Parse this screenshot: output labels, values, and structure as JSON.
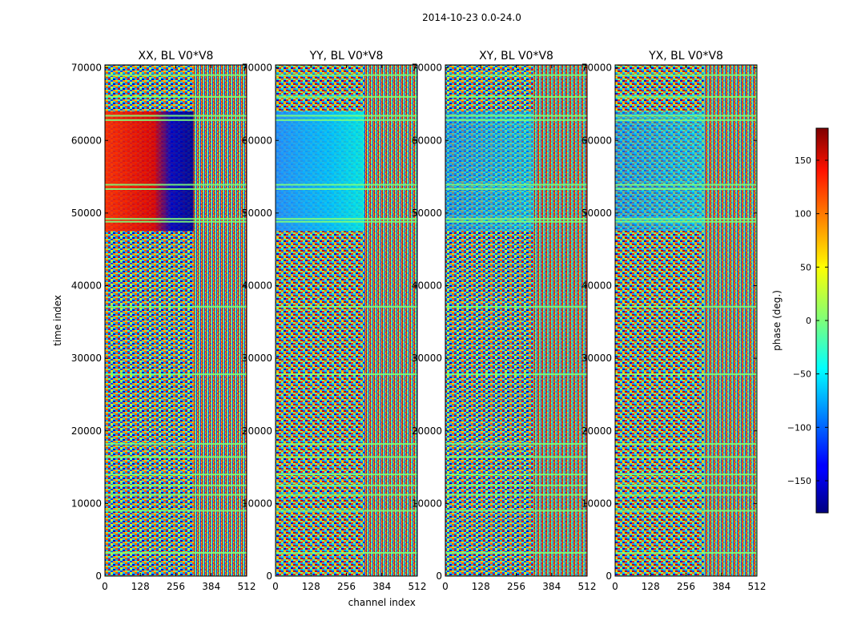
{
  "figure": {
    "suptitle": "2014-10-23 0.0-24.0"
  },
  "colormap": "jet",
  "chart_data": [
    {
      "type": "heatmap",
      "title": "XX, BL V0*V8",
      "xlabel": "",
      "ylabel": "time index",
      "x_range": [
        0,
        512
      ],
      "y_range": [
        0,
        70400
      ],
      "x_ticks": [
        "0",
        "128",
        "256",
        "384",
        "512"
      ],
      "y_ticks": [
        "0",
        "10000",
        "20000",
        "30000",
        "40000",
        "50000",
        "60000",
        "70000"
      ],
      "value_range": [
        -180,
        180
      ],
      "color_scale": "jet"
    },
    {
      "type": "heatmap",
      "title": "YY, BL V0*V8",
      "xlabel": "channel index",
      "ylabel": "",
      "x_range": [
        0,
        512
      ],
      "y_range": [
        0,
        70400
      ],
      "x_ticks": [
        "0",
        "128",
        "256",
        "384",
        "512"
      ],
      "y_ticks": [
        "0",
        "10000",
        "20000",
        "30000",
        "40000",
        "50000",
        "60000",
        "70000"
      ],
      "value_range": [
        -180,
        180
      ],
      "color_scale": "jet"
    },
    {
      "type": "heatmap",
      "title": "XY, BL V0*V8",
      "xlabel": "",
      "ylabel": "",
      "x_range": [
        0,
        512
      ],
      "y_range": [
        0,
        70400
      ],
      "x_ticks": [
        "0",
        "128",
        "256",
        "384",
        "512"
      ],
      "y_ticks": [
        "0",
        "10000",
        "20000",
        "30000",
        "40000",
        "50000",
        "60000",
        "70000"
      ],
      "value_range": [
        -180,
        180
      ],
      "color_scale": "jet"
    },
    {
      "type": "heatmap",
      "title": "YX, BL V0*V8",
      "xlabel": "",
      "ylabel": "",
      "x_range": [
        0,
        512
      ],
      "y_range": [
        0,
        70400
      ],
      "x_ticks": [
        "0",
        "128",
        "256",
        "384",
        "512"
      ],
      "y_ticks": [
        "0",
        "10000",
        "20000",
        "30000",
        "40000",
        "50000",
        "60000",
        "70000"
      ],
      "value_range": [
        -180,
        180
      ],
      "color_scale": "jet"
    }
  ],
  "colorbar": {
    "label": "phase (deg.)",
    "range": [
      -180,
      180
    ],
    "ticks": [
      "150",
      "100",
      "50",
      "0",
      "−50",
      "−100",
      "−150"
    ],
    "tick_values": [
      150,
      100,
      50,
      0,
      -50,
      -100,
      -150
    ]
  }
}
